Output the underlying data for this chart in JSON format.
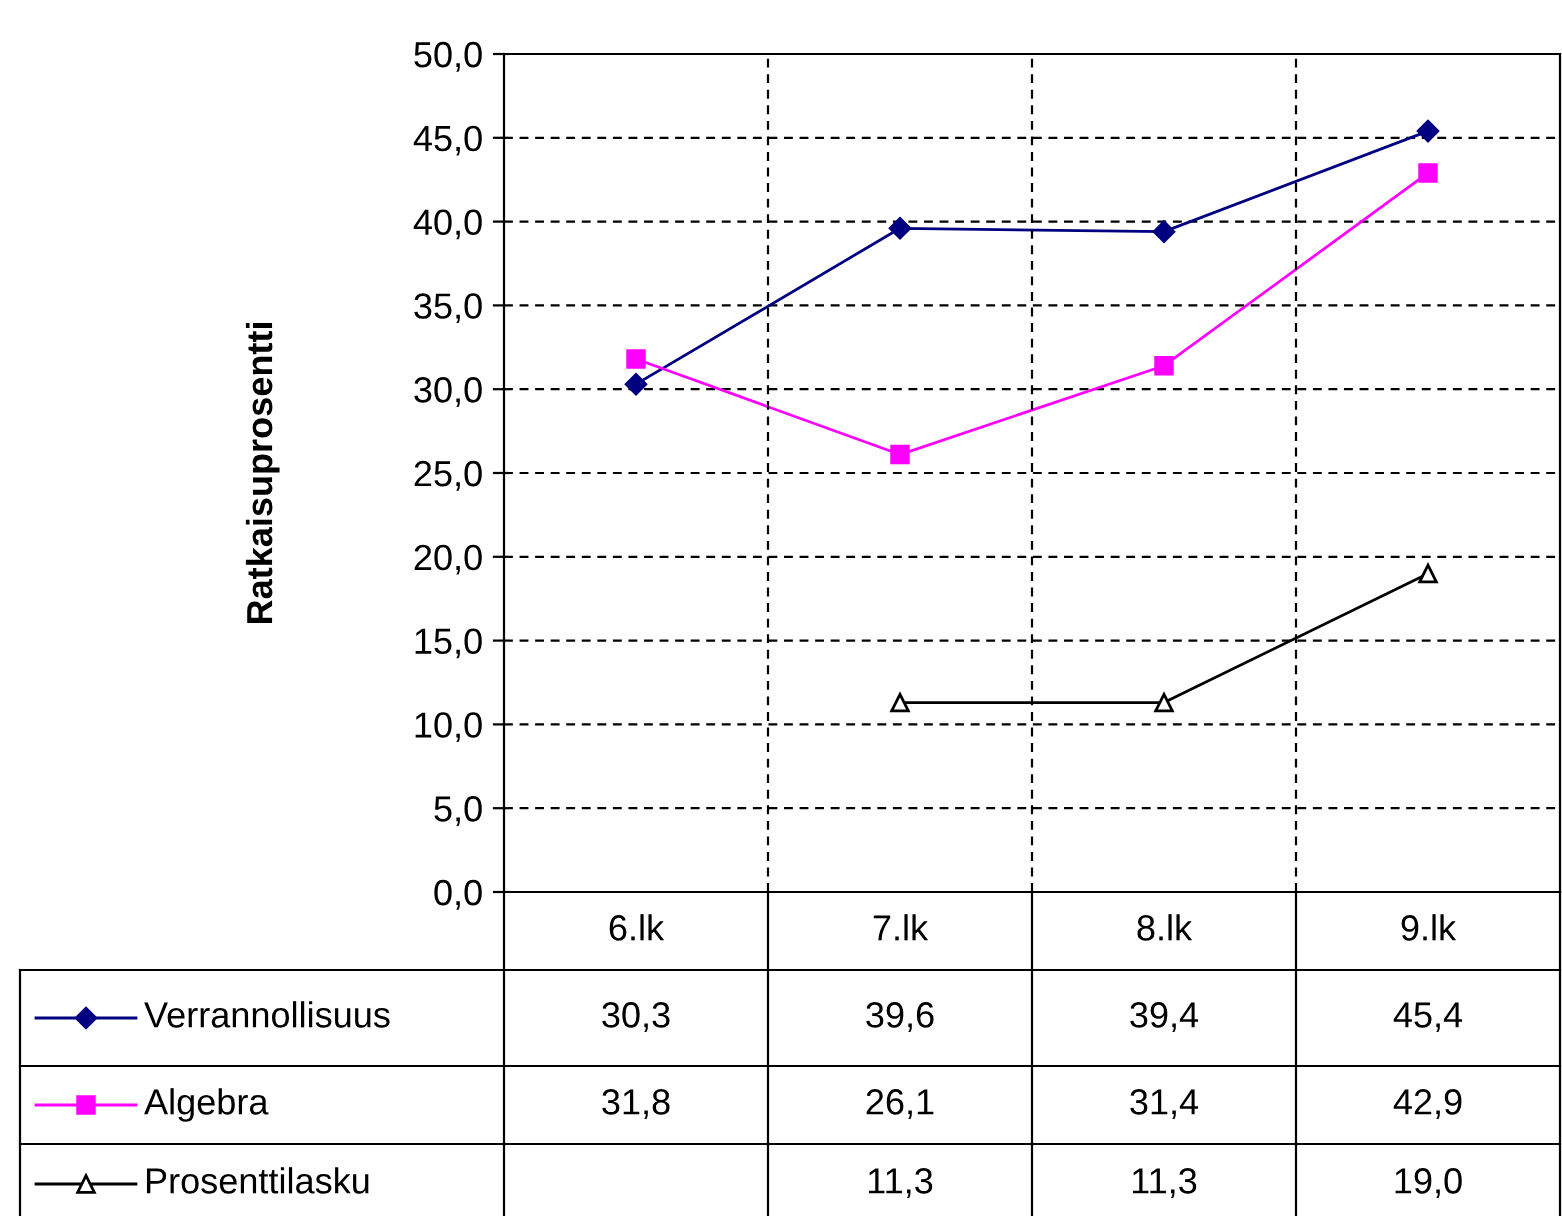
{
  "chart_data": {
    "type": "line",
    "ylabel": "Ratkaisuprosentti",
    "categories": [
      "6.lk",
      "7.lk",
      "8.lk",
      "9.lk"
    ],
    "series": [
      {
        "name": "Verrannollisuus",
        "color": "#000080",
        "marker": "diamond",
        "values": [
          30.3,
          39.6,
          39.4,
          45.4
        ],
        "value_labels": [
          "30,3",
          "39,6",
          "39,4",
          "45,4"
        ]
      },
      {
        "name": "Algebra",
        "color": "#ff00ff",
        "marker": "square",
        "values": [
          31.8,
          26.1,
          31.4,
          42.9
        ],
        "value_labels": [
          "31,8",
          "26,1",
          "31,4",
          "42,9"
        ]
      },
      {
        "name": "Prosenttilasku",
        "color": "#000000",
        "marker": "triangle",
        "values": [
          null,
          11.3,
          11.3,
          19.0
        ],
        "value_labels": [
          null,
          "11,3",
          "11,3",
          "19,0"
        ]
      }
    ],
    "ylim": [
      0,
      50
    ],
    "yticks": [
      {
        "value": 0,
        "label": "0,0"
      },
      {
        "value": 5,
        "label": "5,0"
      },
      {
        "value": 10,
        "label": "10,0"
      },
      {
        "value": 15,
        "label": "15,0"
      },
      {
        "value": 20,
        "label": "20,0"
      },
      {
        "value": 25,
        "label": "25,0"
      },
      {
        "value": 30,
        "label": "30,0"
      },
      {
        "value": 35,
        "label": "35,0"
      },
      {
        "value": 40,
        "label": "40,0"
      },
      {
        "value": 45,
        "label": "45,0"
      },
      {
        "value": 50,
        "label": "50,0"
      }
    ],
    "grid": true,
    "legend": "bottom",
    "line_style": "solid"
  }
}
